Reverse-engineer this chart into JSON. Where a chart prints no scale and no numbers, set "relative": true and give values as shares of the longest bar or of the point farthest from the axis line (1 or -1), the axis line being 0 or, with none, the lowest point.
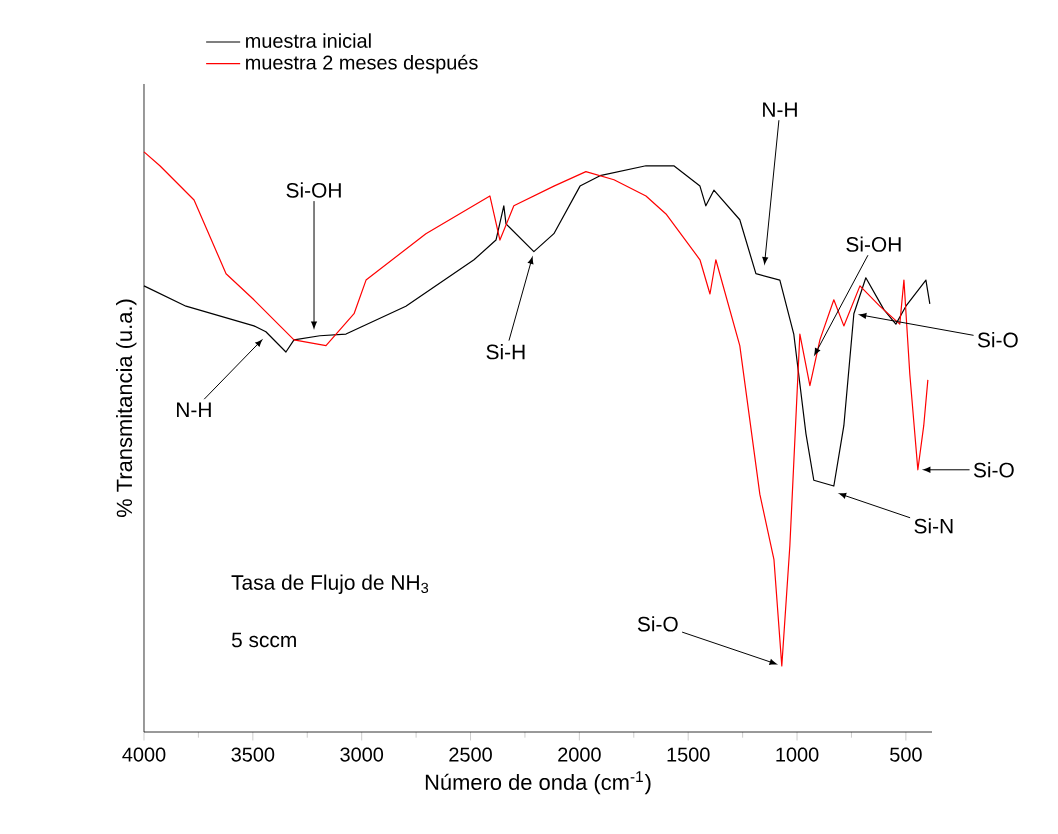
{
  "chart_data": {
    "type": "line",
    "relative": true,
    "xlabel": "Número de onda (cm$^{-1}$)",
    "ylabel": "% Transmitancia (u.a.)",
    "xlim": [
      4000,
      380
    ],
    "xticks": [
      4000,
      3500,
      3000,
      2500,
      2000,
      1500,
      1000,
      500
    ],
    "legend": "top left",
    "grid": false,
    "series": [
      {
        "name": "muestra inicial",
        "color": "#000000",
        "x": [
          4000,
          3807,
          3495,
          3440,
          3348,
          3311,
          3192,
          3072,
          2797,
          2484,
          2383,
          2347,
          2337,
          2209,
          2117,
          1997,
          1905,
          1694,
          1566,
          1446,
          1419,
          1382,
          1263,
          1189,
          1079,
          1015,
          959,
          923,
          831,
          785,
          739,
          684,
          601,
          546,
          500,
          408,
          390
        ],
        "values": [
          0.769,
          0.734,
          0.7,
          0.69,
          0.655,
          0.676,
          0.683,
          0.686,
          0.734,
          0.814,
          0.848,
          0.907,
          0.876,
          0.828,
          0.859,
          0.941,
          0.959,
          0.976,
          0.976,
          0.941,
          0.907,
          0.934,
          0.883,
          0.79,
          0.779,
          0.686,
          0.514,
          0.434,
          0.424,
          0.528,
          0.721,
          0.783,
          0.728,
          0.703,
          0.734,
          0.779,
          0.738
        ]
      },
      {
        "name": "muestra 2 meses después",
        "color": "#ff0000",
        "x": [
          4000,
          3927,
          3770,
          3623,
          3495,
          3311,
          3164,
          3035,
          2980,
          2705,
          2411,
          2365,
          2301,
          2117,
          1970,
          1841,
          1694,
          1602,
          1446,
          1400,
          1373,
          1263,
          1171,
          1106,
          1070,
          1033,
          987,
          941,
          895,
          831,
          785,
          711,
          620,
          528,
          509,
          482,
          445,
          418,
          399
        ],
        "values": [
          1.0,
          0.976,
          0.917,
          0.79,
          0.745,
          0.676,
          0.666,
          0.721,
          0.779,
          0.859,
          0.924,
          0.848,
          0.907,
          0.941,
          0.966,
          0.952,
          0.924,
          0.893,
          0.814,
          0.755,
          0.814,
          0.666,
          0.41,
          0.297,
          0.114,
          0.321,
          0.686,
          0.597,
          0.676,
          0.745,
          0.7,
          0.769,
          0.734,
          0.703,
          0.779,
          0.617,
          0.452,
          0.528,
          0.607
        ]
      }
    ],
    "annotations": [
      {
        "text": "N-H",
        "x": 3440,
        "y": 0.683
      },
      {
        "text": "Si-OH",
        "x": 3219,
        "y": 0.686
      },
      {
        "text": "Si-H",
        "x": 2209,
        "y": 0.828
      },
      {
        "text": "N-H",
        "x": 1152,
        "y": 0.797
      },
      {
        "text": "Si-OH",
        "x": 932,
        "y": 0.641
      },
      {
        "text": "Si-O",
        "x": 739,
        "y": 0.721
      },
      {
        "text": "Si-O",
        "x": 445,
        "y": 0.452
      },
      {
        "text": "Si-N",
        "x": 831,
        "y": 0.414
      },
      {
        "text": "Si-O",
        "x": 1070,
        "y": 0.114
      },
      "Tasa de Flujo de NH$_{3}$",
      "5 sccm"
    ]
  }
}
